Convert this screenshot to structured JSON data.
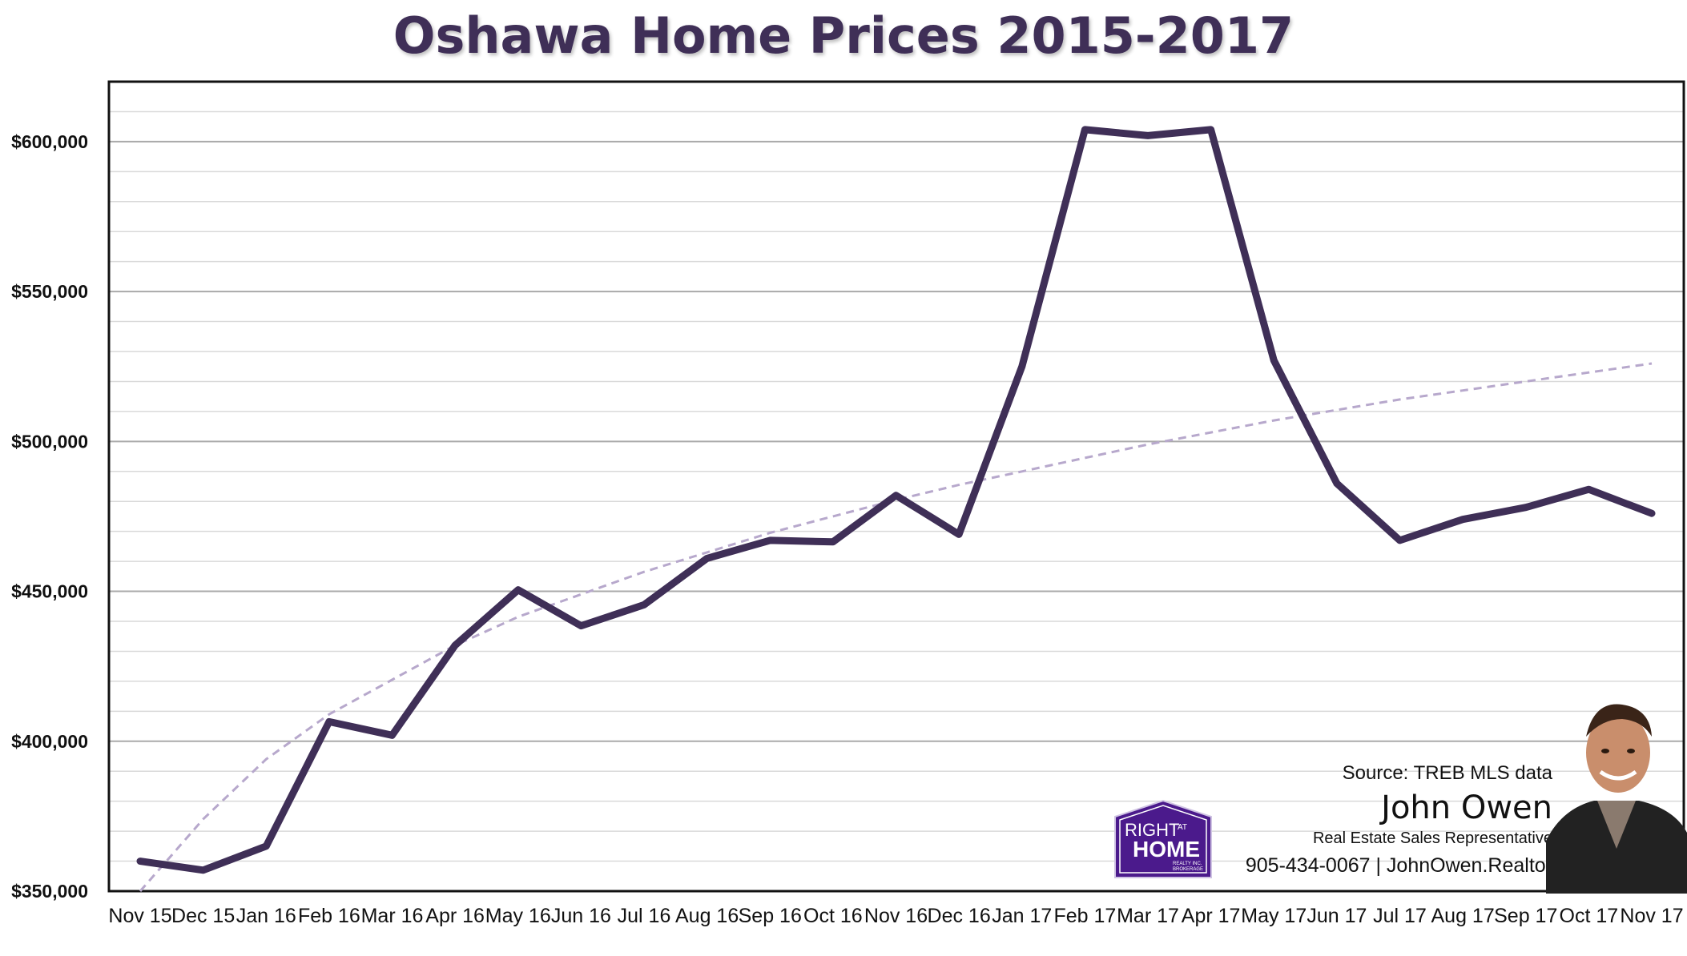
{
  "chart_data": {
    "type": "line",
    "title": "Oshawa Home Prices 2015-2017",
    "xlabel": "",
    "ylabel": "",
    "categories": [
      "Nov 15",
      "Dec 15",
      "Jan 16",
      "Feb 16",
      "Mar 16",
      "Apr 16",
      "May 16",
      "Jun 16",
      "Jul 16",
      "Aug 16",
      "Sep 16",
      "Oct 16",
      "Nov 16",
      "Dec 16",
      "Jan 17",
      "Feb 17",
      "Mar 17",
      "Apr 17",
      "May 17",
      "Jun 17",
      "Jul 17",
      "Aug 17",
      "Sep 17",
      "Oct 17",
      "Nov 17"
    ],
    "series": [
      {
        "values": [
          360000,
          357000,
          365000,
          406500,
          402000,
          432000,
          450500,
          438500,
          445500,
          461000,
          467000,
          466500,
          482000,
          469000,
          525000,
          604000,
          602000,
          604000,
          527000,
          486000,
          467000,
          474000,
          478000,
          484000,
          476000
        ],
        "color": "#3f2f57"
      }
    ],
    "trendline": {
      "style": "dashed",
      "type": "logarithmic",
      "color": "#b7a8cc",
      "values": [
        349000,
        374000,
        394000,
        409000,
        420500,
        432000,
        441500,
        449000,
        456500,
        463000,
        469500,
        475000,
        480500,
        485500,
        490000,
        494500,
        499000,
        503000,
        507000,
        510500,
        514000,
        517000,
        520000,
        523000,
        526000
      ]
    },
    "ylim": [
      350000,
      620000
    ],
    "yticks": [
      350000,
      400000,
      450000,
      500000,
      550000,
      600000
    ],
    "ytick_labels": [
      "$350,000",
      "$400,000",
      "$450,000",
      "$500,000",
      "$550,000",
      "$600,000"
    ],
    "grid": true,
    "legend": "none"
  },
  "credit": {
    "source": "Source: TREB MLS data",
    "name": "John Owen",
    "role": "Real Estate Sales Representative",
    "contact": "905-434-0067 | JohnOwen.Realtor"
  },
  "logo": {
    "line1": "RIGHT",
    "line1_small": "AT",
    "line2": "HOME",
    "line3": "REALTY INC.",
    "line4": "BROKERAGE",
    "color": "#4b1a8c"
  },
  "colors": {
    "title": "#3f2f57",
    "line": "#3f2f57",
    "trend": "#b7a8cc",
    "grid_major": "#aaaaaa",
    "grid_minor": "#d9d9d9"
  }
}
